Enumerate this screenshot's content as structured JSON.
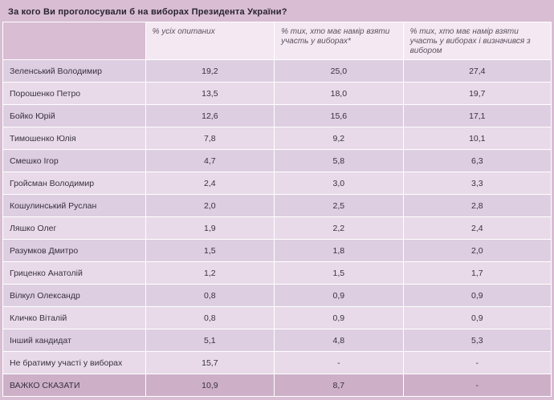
{
  "title": "За кого Ви проголосували б на виборах Президента України?",
  "table": {
    "headers": [
      "",
      "% усіх опитаних",
      "% тих, хто має намір взяти участь у виборах*",
      "% тих, хто має намір взяти участь у виборах і визначився з вибором"
    ],
    "rows": [
      {
        "name": "Зеленський Володимир",
        "values": [
          "19,2",
          "25,0",
          "27,4"
        ]
      },
      {
        "name": "Порошенко Петро",
        "values": [
          "13,5",
          "18,0",
          "19,7"
        ]
      },
      {
        "name": "Бойко Юрій",
        "values": [
          "12,6",
          "15,6",
          "17,1"
        ]
      },
      {
        "name": "Тимошенко Юлія",
        "values": [
          "7,8",
          "9,2",
          "10,1"
        ]
      },
      {
        "name": "Смешко Ігор",
        "values": [
          "4,7",
          "5,8",
          "6,3"
        ]
      },
      {
        "name": "Гройсман Володимир",
        "values": [
          "2,4",
          "3,0",
          "3,3"
        ]
      },
      {
        "name": "Кошулинський Руслан",
        "values": [
          "2,0",
          "2,5",
          "2,8"
        ]
      },
      {
        "name": "Ляшко Олег",
        "values": [
          "1,9",
          "2,2",
          "2,4"
        ]
      },
      {
        "name": "Разумков Дмитро",
        "values": [
          "1,5",
          "1,8",
          "2,0"
        ]
      },
      {
        "name": "Гриценко Анатолій",
        "values": [
          "1,2",
          "1,5",
          "1,7"
        ]
      },
      {
        "name": "Вілкул Олександр",
        "values": [
          "0,8",
          "0,9",
          "0,9"
        ]
      },
      {
        "name": "Кличко Віталій",
        "values": [
          "0,8",
          "0,9",
          "0,9"
        ]
      },
      {
        "name": "Інший кандидат",
        "values": [
          "5,1",
          "4,8",
          "5,3"
        ]
      },
      {
        "name": "Не братиму участі у виборах",
        "values": [
          "15,7",
          "-",
          "-"
        ]
      },
      {
        "name": "ВАЖКО СКАЗАТИ",
        "values": [
          "10,9",
          "8,7",
          "-"
        ],
        "emphasis": true
      }
    ]
  },
  "colors": {
    "page_background": "#d8bdd3",
    "header_cell": "#f4e8f2",
    "row_odd": "#ddcee1",
    "row_even": "#e8dae9",
    "row_emphasis": "#cdb0c8",
    "grid_line": "#ffffff"
  },
  "chart_data": {
    "type": "table",
    "title": "За кого Ви проголосували б на виборах Президента України?",
    "columns": [
      "% усіх опитаних",
      "% тих, хто має намір взяти участь у виборах*",
      "% тих, хто має намір взяти участь у виборах і визначився з вибором"
    ],
    "rows": [
      [
        "Зеленський Володимир",
        19.2,
        25.0,
        27.4
      ],
      [
        "Порошенко Петро",
        13.5,
        18.0,
        19.7
      ],
      [
        "Бойко Юрій",
        12.6,
        15.6,
        17.1
      ],
      [
        "Тимошенко Юлія",
        7.8,
        9.2,
        10.1
      ],
      [
        "Смешко Ігор",
        4.7,
        5.8,
        6.3
      ],
      [
        "Гройсман Володимир",
        2.4,
        3.0,
        3.3
      ],
      [
        "Кошулинський Руслан",
        2.0,
        2.5,
        2.8
      ],
      [
        "Ляшко Олег",
        1.9,
        2.2,
        2.4
      ],
      [
        "Разумков Дмитро",
        1.5,
        1.8,
        2.0
      ],
      [
        "Гриценко Анатолій",
        1.2,
        1.5,
        1.7
      ],
      [
        "Вілкул Олександр",
        0.8,
        0.9,
        0.9
      ],
      [
        "Кличко Віталій",
        0.8,
        0.9,
        0.9
      ],
      [
        "Інший кандидат",
        5.1,
        4.8,
        5.3
      ],
      [
        "Не братиму участі у виборах",
        15.7,
        null,
        null
      ],
      [
        "ВАЖКО СКАЗАТИ",
        10.9,
        8.7,
        null
      ]
    ]
  }
}
